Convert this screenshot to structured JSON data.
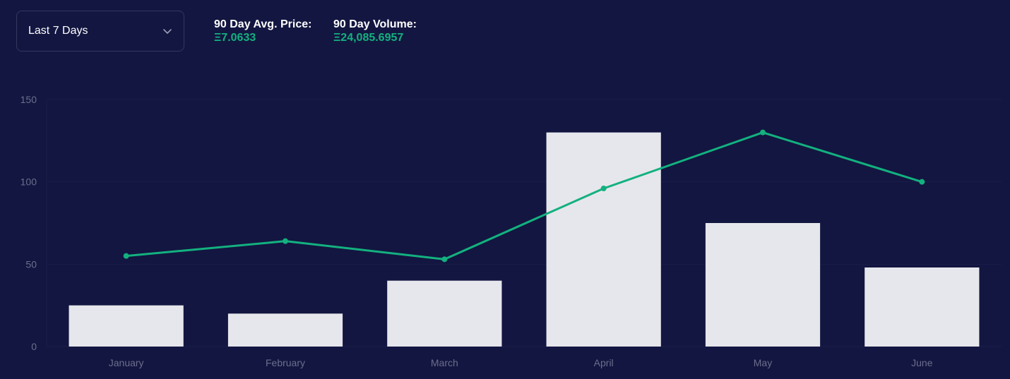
{
  "period_select": {
    "value": "Last 7 Days",
    "icon": "chevron-down-icon"
  },
  "stats": {
    "avg_price_label": "90 Day Avg. Price:",
    "avg_price_value": "Ξ7.0633",
    "volume_label": "90 Day Volume:",
    "volume_value": "Ξ24,085.6957"
  },
  "colors": {
    "background": "#131640",
    "bar": "#e6e7ec",
    "line": "#13b17f",
    "grid": "#1a1d4a",
    "tick_text": "#6b6e8c"
  },
  "chart_data": {
    "type": "bar",
    "categories": [
      "January",
      "February",
      "March",
      "April",
      "May",
      "June"
    ],
    "series": [
      {
        "type": "bar",
        "values": [
          25,
          20,
          40,
          130,
          75,
          48
        ]
      },
      {
        "type": "line",
        "values": [
          55,
          64,
          53,
          96,
          130,
          100
        ]
      }
    ],
    "ylim": [
      0,
      150
    ],
    "yticks": [
      0,
      50,
      100,
      150
    ],
    "grid": true
  }
}
